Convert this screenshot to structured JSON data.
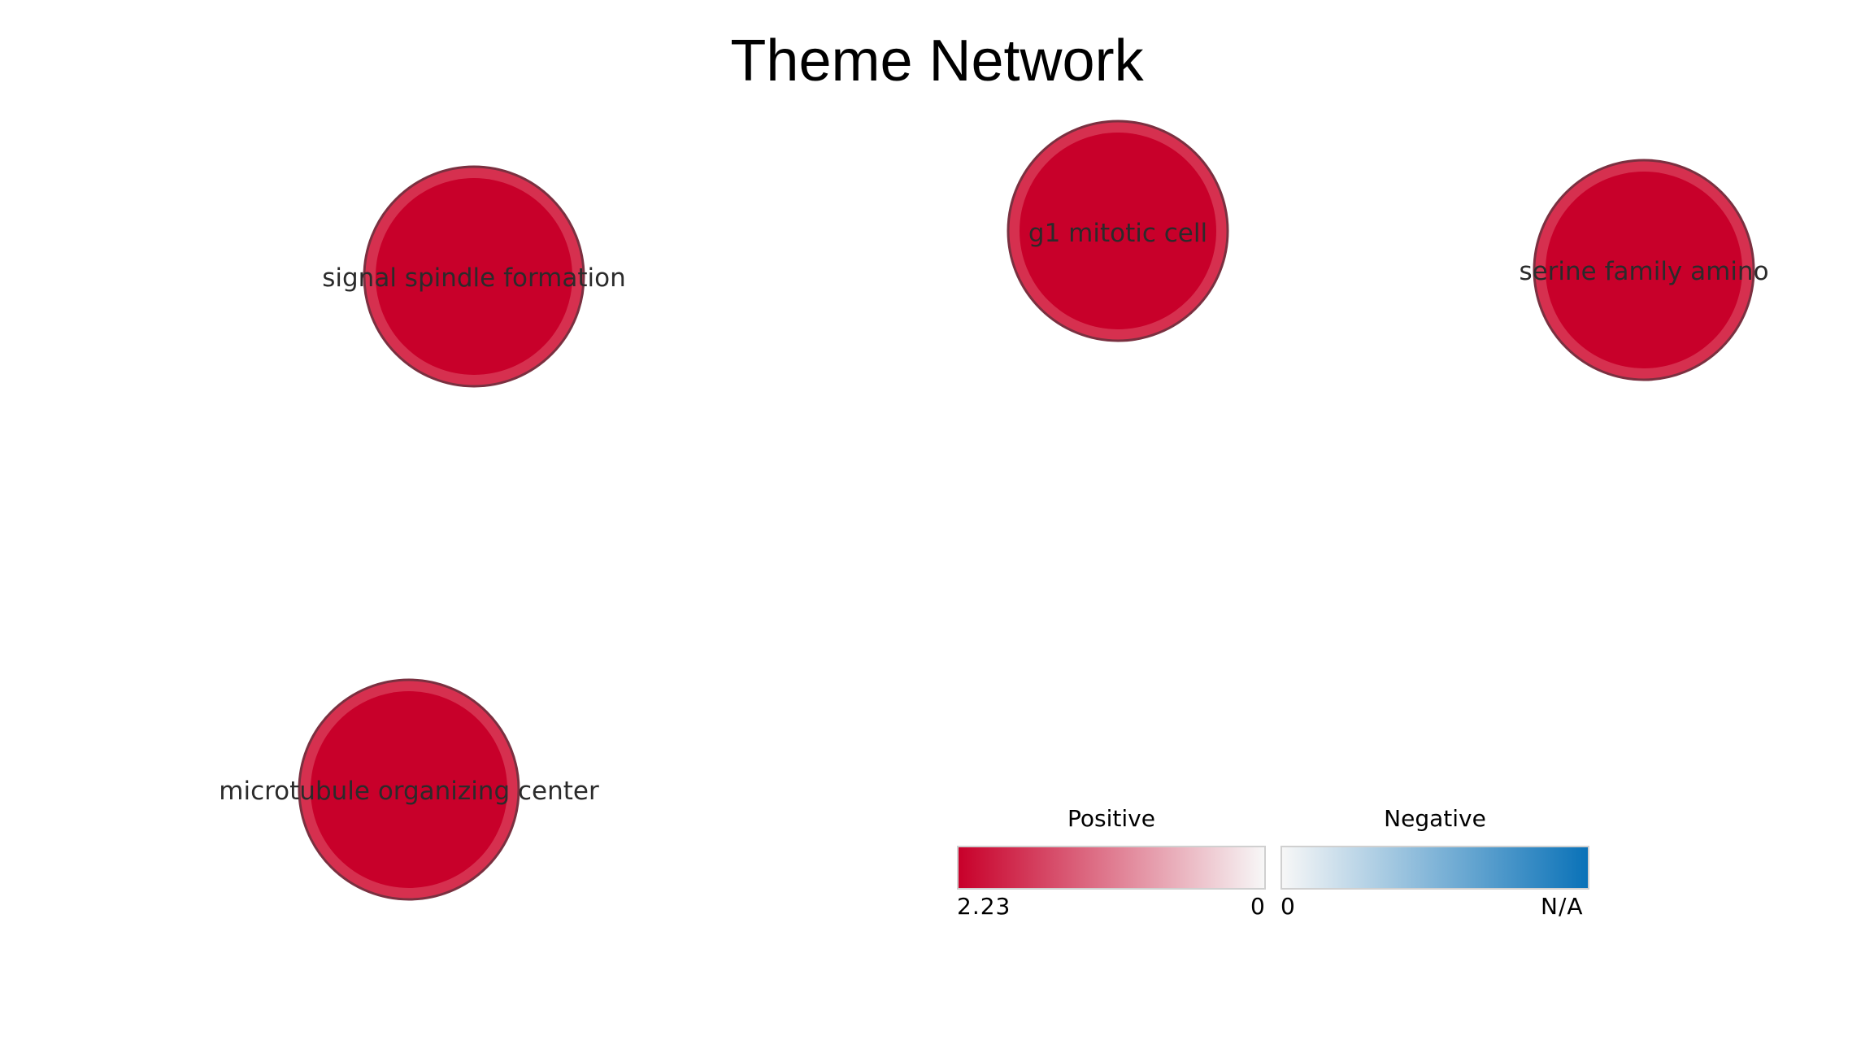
{
  "title": "Theme Network",
  "nodes": [
    {
      "label": "signal spindle formation"
    },
    {
      "label": "g1 mitotic cell"
    },
    {
      "label": "serine family amino"
    },
    {
      "label": "microtubule organizing center"
    }
  ],
  "legend": {
    "positive": {
      "heading": "Positive",
      "min_label": "2.23",
      "max_label": "0",
      "color_start": "#c8002a",
      "color_end": "#f7f7f7"
    },
    "negative": {
      "heading": "Negative",
      "min_label": "0",
      "max_label": "N/A",
      "color_start": "#f7f7f7",
      "color_end": "#0a72b8"
    }
  },
  "colors": {
    "node_fill": "#c8002a",
    "node_ring": "#d6304f",
    "node_outline": "#7a3040"
  }
}
